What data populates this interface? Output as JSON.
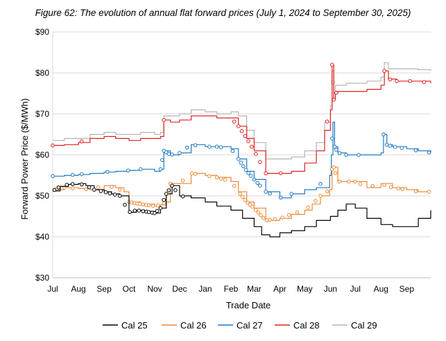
{
  "chart_data": {
    "type": "line",
    "title": "Figure 62: The evolution of annual flat forward prices (July 1, 2024 to September 30, 2025)",
    "xlabel": "Trade Date",
    "ylabel": "Forward Power Price ($/MWh)",
    "ylim": [
      30,
      90
    ],
    "xlim": [
      "2024-07-01",
      "2025-09-30"
    ],
    "y_ticks": [
      30,
      40,
      50,
      60,
      70,
      80,
      90
    ],
    "y_tick_labels": [
      "$30",
      "$40",
      "$50",
      "$60",
      "$70",
      "$80",
      "$90"
    ],
    "x_ticks": [
      "2024-07-01",
      "2024-08-01",
      "2024-09-01",
      "2024-10-01",
      "2024-11-01",
      "2024-12-01",
      "2025-01-01",
      "2025-02-01",
      "2025-03-01",
      "2025-04-01",
      "2025-05-01",
      "2025-06-01",
      "2025-07-01",
      "2025-08-01",
      "2025-09-01"
    ],
    "x_tick_labels": [
      "Jul",
      "Aug",
      "Sep",
      "Oct",
      "Nov",
      "Dec",
      "Jan",
      "Feb",
      "Mar",
      "Apr",
      "May",
      "Jun",
      "Jul",
      "Aug",
      "Sep"
    ],
    "grid": "horizontal",
    "legend_position": "bottom",
    "series": [
      {
        "name": "Cal 25",
        "color": "#000000",
        "x": [
          "2024-07-01",
          "2024-07-10",
          "2024-07-20",
          "2024-08-01",
          "2024-08-10",
          "2024-08-20",
          "2024-09-01",
          "2024-09-10",
          "2024-09-20",
          "2024-10-01",
          "2024-10-10",
          "2024-10-20",
          "2024-11-01",
          "2024-11-08",
          "2024-11-15",
          "2024-11-22",
          "2024-12-01",
          "2024-12-15",
          "2025-01-01",
          "2025-01-15",
          "2025-02-01",
          "2025-02-15",
          "2025-03-01",
          "2025-03-10",
          "2025-03-20",
          "2025-04-01",
          "2025-04-15",
          "2025-05-01",
          "2025-05-15",
          "2025-06-01",
          "2025-06-10",
          "2025-06-20",
          "2025-07-01",
          "2025-07-15",
          "2025-08-01",
          "2025-08-15",
          "2025-09-01",
          "2025-09-15",
          "2025-09-30"
        ],
        "values": [
          51.2,
          52.3,
          52.8,
          53.0,
          52.5,
          51.5,
          51.0,
          50.5,
          50.0,
          46.0,
          46.5,
          46.2,
          45.8,
          47.0,
          50.5,
          52.5,
          50.0,
          49.5,
          48.5,
          47.5,
          46.5,
          44.5,
          42.5,
          40.5,
          40.0,
          41.0,
          41.5,
          42.5,
          44.0,
          45.0,
          46.5,
          48.0,
          47.0,
          44.5,
          43.0,
          42.5,
          42.5,
          44.5,
          46.5
        ],
        "markers": [
          "2024-07-03",
          "2024-07-08",
          "2024-07-18",
          "2024-07-25",
          "2024-08-05",
          "2024-08-14",
          "2024-08-20",
          "2024-08-28",
          "2024-09-03",
          "2024-09-08",
          "2024-09-14",
          "2024-09-20",
          "2024-09-26",
          "2024-10-02",
          "2024-10-08",
          "2024-10-13",
          "2024-10-18",
          "2024-10-22",
          "2024-10-25",
          "2024-10-29",
          "2024-11-01",
          "2024-11-04",
          "2024-11-08",
          "2024-11-12",
          "2024-11-15",
          "2024-11-18",
          "2024-11-22",
          "2024-11-26",
          "2024-12-05"
        ]
      },
      {
        "name": "Cal 26",
        "color": "#ed8a36",
        "x": [
          "2024-07-01",
          "2024-07-15",
          "2024-08-01",
          "2024-08-15",
          "2024-09-01",
          "2024-09-15",
          "2024-09-25",
          "2024-10-01",
          "2024-10-15",
          "2024-11-01",
          "2024-11-08",
          "2024-11-15",
          "2024-11-20",
          "2024-12-01",
          "2024-12-15",
          "2025-01-01",
          "2025-01-15",
          "2025-02-01",
          "2025-02-10",
          "2025-02-20",
          "2025-03-01",
          "2025-03-15",
          "2025-04-01",
          "2025-04-15",
          "2025-05-01",
          "2025-05-10",
          "2025-05-20",
          "2025-05-31",
          "2025-06-03",
          "2025-06-05",
          "2025-06-10",
          "2025-06-20",
          "2025-07-01",
          "2025-07-15",
          "2025-08-01",
          "2025-08-15",
          "2025-09-01",
          "2025-09-15",
          "2025-09-30"
        ],
        "values": [
          51.5,
          52.0,
          51.8,
          51.5,
          52.5,
          52.0,
          51.0,
          48.5,
          48.0,
          47.5,
          47.8,
          48.5,
          53.0,
          53.0,
          55.5,
          55.0,
          54.5,
          53.5,
          51.0,
          48.5,
          47.0,
          44.0,
          44.5,
          45.5,
          46.5,
          48.0,
          50.0,
          51.5,
          56.5,
          57.0,
          53.5,
          53.5,
          53.5,
          52.0,
          53.0,
          52.0,
          51.5,
          51.0,
          51.0
        ],
        "markers": [
          "2024-07-05",
          "2024-07-15",
          "2024-07-25",
          "2024-08-10",
          "2024-08-25",
          "2024-09-10",
          "2024-09-20",
          "2024-10-01",
          "2024-10-04",
          "2024-10-08",
          "2024-10-11",
          "2024-10-14",
          "2024-10-18",
          "2024-10-22",
          "2024-10-25",
          "2024-10-30",
          "2024-11-05",
          "2024-11-12",
          "2024-11-20",
          "2024-12-05",
          "2024-12-16",
          "2024-12-20",
          "2025-01-06",
          "2025-01-15",
          "2025-01-20",
          "2025-01-25",
          "2025-02-05",
          "2025-02-12",
          "2025-02-15",
          "2025-02-18",
          "2025-02-21",
          "2025-02-24",
          "2025-02-27",
          "2025-03-03",
          "2025-03-06",
          "2025-03-09",
          "2025-03-12",
          "2025-03-16",
          "2025-03-20",
          "2025-03-26",
          "2025-04-04",
          "2025-04-12",
          "2025-04-22",
          "2025-05-05",
          "2025-05-14",
          "2025-05-20",
          "2025-05-28",
          "2025-06-03",
          "2025-06-05",
          "2025-06-07",
          "2025-06-12",
          "2025-06-23",
          "2025-07-01",
          "2025-07-07",
          "2025-07-22",
          "2025-08-05",
          "2025-08-13",
          "2025-08-22",
          "2025-08-27",
          "2025-09-12",
          "2025-09-28"
        ]
      },
      {
        "name": "Cal 27",
        "color": "#1f77c4",
        "x": [
          "2024-07-01",
          "2024-07-15",
          "2024-08-01",
          "2024-08-15",
          "2024-09-01",
          "2024-09-15",
          "2024-10-01",
          "2024-10-15",
          "2024-11-01",
          "2024-11-08",
          "2024-11-12",
          "2024-11-20",
          "2024-12-01",
          "2024-12-15",
          "2025-01-01",
          "2025-01-15",
          "2025-02-01",
          "2025-02-10",
          "2025-02-20",
          "2025-03-01",
          "2025-03-15",
          "2025-04-01",
          "2025-04-15",
          "2025-05-01",
          "2025-05-15",
          "2025-05-31",
          "2025-06-02",
          "2025-06-04",
          "2025-06-06",
          "2025-06-10",
          "2025-06-20",
          "2025-07-01",
          "2025-07-15",
          "2025-08-01",
          "2025-08-04",
          "2025-08-08",
          "2025-08-15",
          "2025-09-01",
          "2025-09-15",
          "2025-09-30"
        ],
        "values": [
          54.8,
          55.0,
          55.2,
          55.5,
          55.8,
          56.0,
          56.2,
          56.5,
          56.0,
          56.5,
          61.0,
          60.0,
          60.5,
          62.5,
          62.0,
          62.0,
          61.5,
          59.0,
          56.0,
          54.0,
          51.0,
          49.5,
          50.5,
          51.5,
          52.0,
          55.0,
          60.0,
          68.0,
          62.0,
          60.5,
          60.0,
          60.0,
          60.0,
          60.5,
          65.0,
          62.5,
          62.0,
          61.5,
          61.0,
          60.5
        ],
        "markers": [
          "2024-07-01",
          "2024-07-25",
          "2024-08-05",
          "2024-09-05",
          "2024-09-30",
          "2024-10-15",
          "2024-11-08",
          "2024-11-10",
          "2024-11-12",
          "2024-11-15",
          "2024-11-18",
          "2024-11-22",
          "2024-12-01",
          "2024-12-10",
          "2024-12-20",
          "2025-01-06",
          "2025-01-15",
          "2025-01-20",
          "2025-02-03",
          "2025-02-10",
          "2025-02-13",
          "2025-02-16",
          "2025-02-19",
          "2025-02-22",
          "2025-02-25",
          "2025-03-01",
          "2025-03-05",
          "2025-03-08",
          "2025-03-15",
          "2025-03-20",
          "2025-04-02",
          "2025-04-15",
          "2025-05-20",
          "2025-06-03",
          "2025-06-06",
          "2025-06-08",
          "2025-06-12",
          "2025-06-20",
          "2025-07-05",
          "2025-08-04",
          "2025-08-08",
          "2025-08-12",
          "2025-08-18",
          "2025-08-26",
          "2025-09-12",
          "2025-09-28"
        ]
      },
      {
        "name": "Cal 28",
        "color": "#e02020",
        "x": [
          "2024-07-01",
          "2024-07-15",
          "2024-08-01",
          "2024-08-15",
          "2024-09-01",
          "2024-09-15",
          "2024-10-01",
          "2024-10-15",
          "2024-11-01",
          "2024-11-08",
          "2024-11-12",
          "2024-11-20",
          "2024-12-01",
          "2024-12-15",
          "2025-01-01",
          "2025-01-15",
          "2025-02-01",
          "2025-02-10",
          "2025-02-20",
          "2025-03-01",
          "2025-03-15",
          "2025-04-01",
          "2025-04-15",
          "2025-05-01",
          "2025-05-15",
          "2025-05-25",
          "2025-06-01",
          "2025-06-03",
          "2025-06-05",
          "2025-06-07",
          "2025-06-10",
          "2025-06-20",
          "2025-07-01",
          "2025-07-15",
          "2025-08-01",
          "2025-08-05",
          "2025-08-10",
          "2025-08-20",
          "2025-09-01",
          "2025-09-15",
          "2025-09-30"
        ],
        "values": [
          62.3,
          62.5,
          63.0,
          64.0,
          64.5,
          64.0,
          63.5,
          64.0,
          64.0,
          64.5,
          68.5,
          68.0,
          68.5,
          69.5,
          69.5,
          69.0,
          69.0,
          67.0,
          64.0,
          61.0,
          55.5,
          55.5,
          56.0,
          58.0,
          61.0,
          66.0,
          71.0,
          82.0,
          73.5,
          75.0,
          75.5,
          75.5,
          75.5,
          76.0,
          77.0,
          80.5,
          78.5,
          78.0,
          78.0,
          78.0,
          77.5
        ],
        "markers": [
          "2024-07-01",
          "2024-08-05",
          "2024-11-12",
          "2025-02-05",
          "2025-02-10",
          "2025-02-14",
          "2025-02-18",
          "2025-02-22",
          "2025-02-26",
          "2025-03-03",
          "2025-03-08",
          "2025-03-15",
          "2025-04-02",
          "2025-05-28",
          "2025-06-03",
          "2025-06-05",
          "2025-06-08",
          "2025-08-05",
          "2025-08-12",
          "2025-08-20",
          "2025-09-05",
          "2025-09-22"
        ]
      },
      {
        "name": "Cal 29",
        "color": "#b3b3b3",
        "x": [
          "2024-07-01",
          "2024-07-15",
          "2024-08-01",
          "2024-08-15",
          "2024-09-01",
          "2024-09-15",
          "2024-10-01",
          "2024-10-15",
          "2024-11-01",
          "2024-11-08",
          "2024-11-12",
          "2024-11-20",
          "2024-12-01",
          "2024-12-15",
          "2025-01-01",
          "2025-01-15",
          "2025-02-01",
          "2025-02-10",
          "2025-02-20",
          "2025-03-01",
          "2025-03-15",
          "2025-04-01",
          "2025-04-15",
          "2025-05-01",
          "2025-05-15",
          "2025-05-25",
          "2025-06-01",
          "2025-06-03",
          "2025-06-05",
          "2025-06-07",
          "2025-06-10",
          "2025-06-20",
          "2025-07-01",
          "2025-07-15",
          "2025-08-01",
          "2025-08-05",
          "2025-08-10",
          "2025-08-20",
          "2025-09-01",
          "2025-09-15",
          "2025-09-30"
        ],
        "values": [
          63.5,
          64.0,
          64.0,
          65.0,
          65.5,
          65.0,
          65.0,
          65.5,
          65.0,
          65.5,
          69.5,
          69.5,
          70.0,
          71.0,
          70.5,
          70.0,
          70.5,
          69.5,
          66.0,
          63.0,
          59.0,
          59.0,
          59.5,
          61.0,
          63.0,
          68.0,
          72.0,
          80.5,
          75.0,
          77.0,
          77.0,
          77.5,
          77.5,
          78.0,
          79.0,
          82.5,
          81.0,
          81.0,
          81.0,
          80.8,
          80.5
        ],
        "markers": [
          "2025-06-04"
        ]
      }
    ]
  }
}
